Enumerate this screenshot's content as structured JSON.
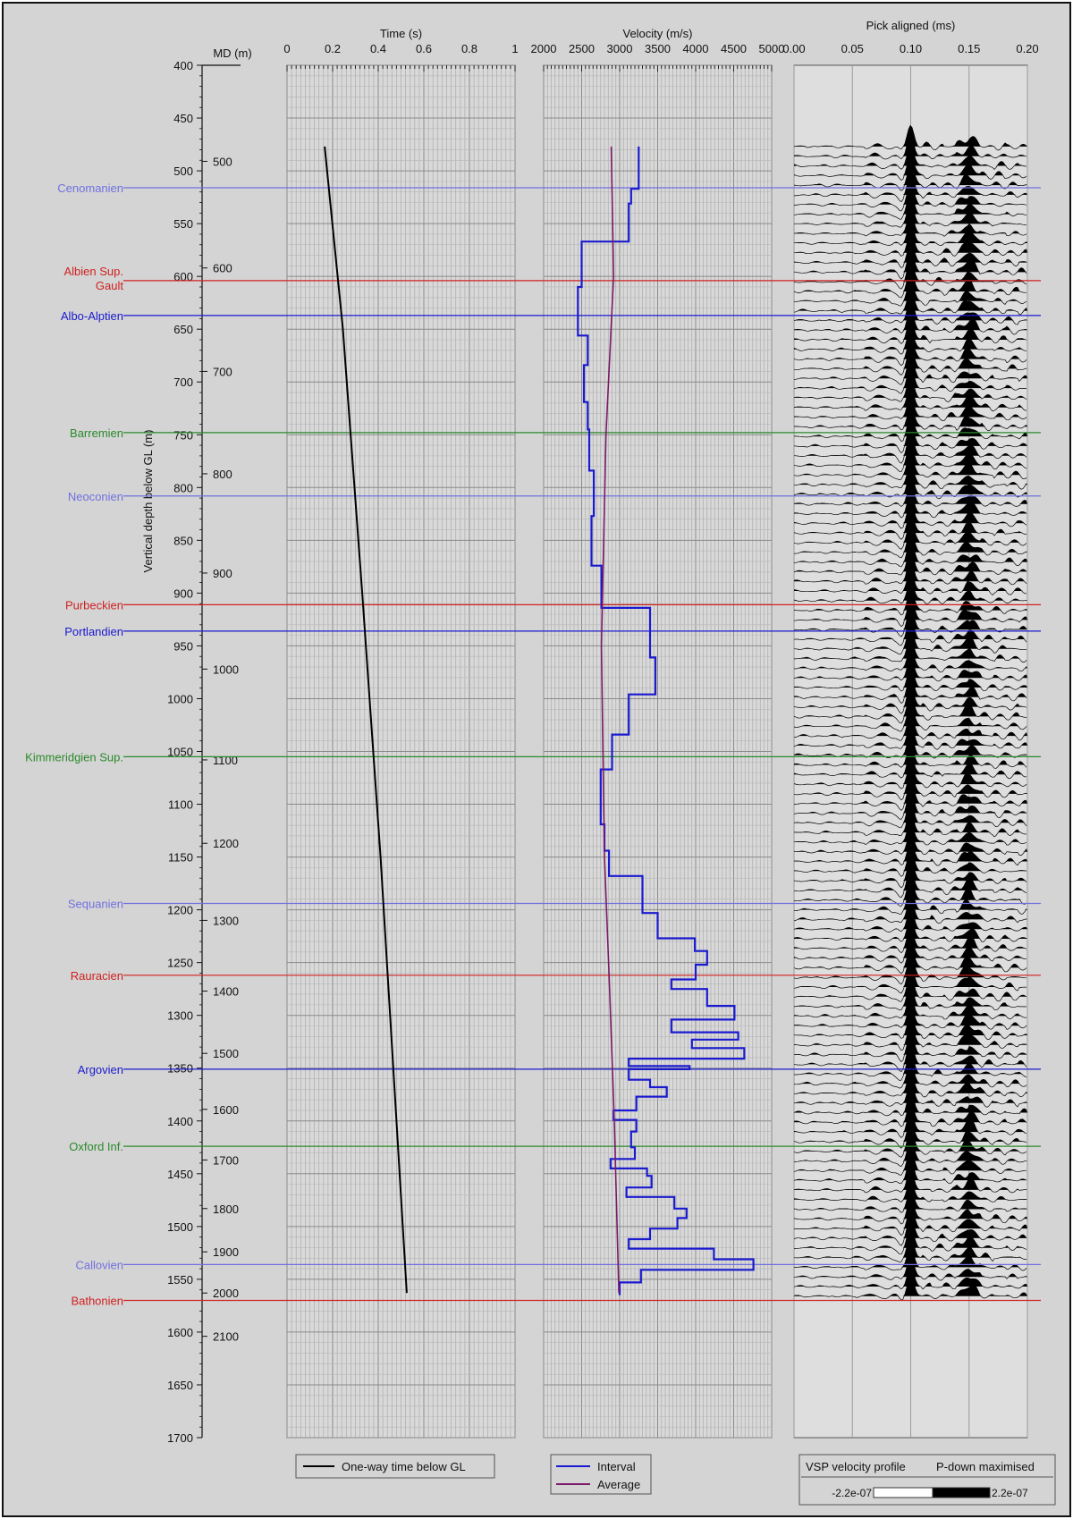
{
  "chart_data": {
    "type": "line",
    "depth_axis": {
      "label": "Vertical depth below GL (m)",
      "range": [
        400,
        1700
      ],
      "ticks": [
        400,
        450,
        500,
        550,
        600,
        650,
        700,
        750,
        800,
        850,
        900,
        950,
        1000,
        1050,
        1100,
        1150,
        1200,
        1250,
        1300,
        1350,
        1400,
        1450,
        1500,
        1550,
        1600,
        1650,
        1700
      ]
    },
    "md_axis": {
      "label": "MD (m)",
      "ticks": [
        {
          "md": 500,
          "depth": 491
        },
        {
          "md": 600,
          "depth": 592
        },
        {
          "md": 700,
          "depth": 690
        },
        {
          "md": 800,
          "depth": 787
        },
        {
          "md": 900,
          "depth": 881
        },
        {
          "md": 1000,
          "depth": 972
        },
        {
          "md": 1100,
          "depth": 1058
        },
        {
          "md": 1200,
          "depth": 1137
        },
        {
          "md": 1300,
          "depth": 1210
        },
        {
          "md": 1400,
          "depth": 1277
        },
        {
          "md": 1500,
          "depth": 1336
        },
        {
          "md": 1600,
          "depth": 1389
        },
        {
          "md": 1700,
          "depth": 1437
        },
        {
          "md": 1800,
          "depth": 1483
        },
        {
          "md": 1900,
          "depth": 1524
        },
        {
          "md": 2000,
          "depth": 1563
        },
        {
          "md": 2100,
          "depth": 1604
        }
      ]
    },
    "horizons": [
      {
        "name": "Cenomanien",
        "depth": 516,
        "color": "#7070e0"
      },
      {
        "name": "Albien Sup.",
        "name2": "Gault",
        "depth": 604,
        "color": "#d02020"
      },
      {
        "name": "Albo-Alptien",
        "depth": 637,
        "color": "#1a1ad0"
      },
      {
        "name": "Barremien",
        "depth": 748,
        "color": "#2a8a2a"
      },
      {
        "name": "Neoconien",
        "depth": 808,
        "color": "#7070e0"
      },
      {
        "name": "Purbeckien",
        "depth": 911,
        "color": "#d02020"
      },
      {
        "name": "Portlandien",
        "depth": 936,
        "color": "#1a1ad0"
      },
      {
        "name": "Kimmeridgien Sup.",
        "depth": 1055,
        "color": "#2a8a2a"
      },
      {
        "name": "Sequanien",
        "depth": 1194,
        "color": "#7070e0"
      },
      {
        "name": "Rauracien",
        "depth": 1262,
        "color": "#d02020"
      },
      {
        "name": "Argovien",
        "depth": 1351,
        "color": "#1a1ad0"
      },
      {
        "name": "Oxford Inf.",
        "depth": 1424,
        "color": "#2a8a2a"
      },
      {
        "name": "Callovien",
        "depth": 1536,
        "color": "#7070e0"
      },
      {
        "name": "Bathonien",
        "depth": 1570,
        "color": "#d02020"
      }
    ],
    "time_panel": {
      "title": "Time (s)",
      "xlim": [
        0,
        1
      ],
      "ticks": [
        0,
        0.2,
        0.4,
        0.6,
        0.8,
        1
      ],
      "tick_labels": [
        "0",
        "0.2",
        "0.4",
        "0.6",
        "0.8",
        "1"
      ],
      "series": [
        {
          "name": "One-way time below GL",
          "color": "#000000",
          "points": [
            [
              0.165,
              477
            ],
            [
              0.245,
              650
            ],
            [
              0.33,
              900
            ],
            [
              0.41,
              1150
            ],
            [
              0.48,
              1400
            ],
            [
              0.525,
              1563
            ]
          ]
        }
      ]
    },
    "velocity_panel": {
      "title": "Velocity (m/s)",
      "xlim": [
        2000,
        5000
      ],
      "ticks": [
        2000,
        2500,
        3000,
        3500,
        4000,
        4500,
        5000
      ],
      "tick_labels": [
        "2000",
        "2500",
        "3000",
        "3500",
        "4000",
        "4500",
        "5000"
      ],
      "series": [
        {
          "name": "Interval",
          "color": "#1a1ad0",
          "steps": [
            [
              3250,
              477,
              517
            ],
            [
              3150,
              517,
              531
            ],
            [
              3120,
              531,
              567
            ],
            [
              2500,
              567,
              610
            ],
            [
              2450,
              610,
              656
            ],
            [
              2580,
              656,
              684
            ],
            [
              2530,
              684,
              719
            ],
            [
              2580,
              719,
              745
            ],
            [
              2600,
              745,
              784
            ],
            [
              2660,
              784,
              827
            ],
            [
              2630,
              827,
              874
            ],
            [
              2760,
              874,
              914
            ],
            [
              3400,
              914,
              961
            ],
            [
              3470,
              961,
              996
            ],
            [
              3120,
              996,
              1034
            ],
            [
              2900,
              1034,
              1067
            ],
            [
              2750,
              1067,
              1119
            ],
            [
              2800,
              1119,
              1144
            ],
            [
              2860,
              1144,
              1168
            ],
            [
              3300,
              1168,
              1203
            ],
            [
              3500,
              1203,
              1227
            ],
            [
              3990,
              1227,
              1239
            ],
            [
              4150,
              1239,
              1252
            ],
            [
              4000,
              1252,
              1266
            ],
            [
              3680,
              1266,
              1275
            ],
            [
              4150,
              1275,
              1291
            ],
            [
              4510,
              1291,
              1304
            ],
            [
              3680,
              1304,
              1316
            ],
            [
              4560,
              1316,
              1323
            ],
            [
              3950,
              1323,
              1331
            ],
            [
              4640,
              1331,
              1341
            ],
            [
              3120,
              1341,
              1348
            ],
            [
              3920,
              1348,
              1351
            ],
            [
              3120,
              1351,
              1361
            ],
            [
              3400,
              1361,
              1368
            ],
            [
              3620,
              1368,
              1377
            ],
            [
              3220,
              1377,
              1390
            ],
            [
              2920,
              1390,
              1399
            ],
            [
              3220,
              1399,
              1410
            ],
            [
              3150,
              1410,
              1425
            ],
            [
              3200,
              1425,
              1436
            ],
            [
              2880,
              1436,
              1445
            ],
            [
              3360,
              1445,
              1452
            ],
            [
              3420,
              1452,
              1463
            ],
            [
              3090,
              1463,
              1472
            ],
            [
              3720,
              1472,
              1483
            ],
            [
              3880,
              1483,
              1492
            ],
            [
              3760,
              1492,
              1502
            ],
            [
              3400,
              1502,
              1512
            ],
            [
              3120,
              1512,
              1521
            ],
            [
              4240,
              1521,
              1531
            ],
            [
              4760,
              1531,
              1541
            ],
            [
              3280,
              1541,
              1553
            ],
            [
              3000,
              1553,
              1565
            ]
          ]
        },
        {
          "name": "Average",
          "color": "#7a1a6a",
          "points": [
            [
              2890,
              477
            ],
            [
              2920,
              600
            ],
            [
              2820,
              750
            ],
            [
              2760,
              950
            ],
            [
              2800,
              1150
            ],
            [
              2860,
              1260
            ],
            [
              2930,
              1400
            ],
            [
              2990,
              1563
            ]
          ]
        }
      ]
    },
    "vsp_panel": {
      "title": "Pick aligned (ms)",
      "xlim": [
        0,
        0.2
      ],
      "ticks": [
        0,
        0.05,
        0.1,
        0.15,
        0.2
      ],
      "tick_labels": [
        "0.00",
        "0.05",
        "0.10",
        "0.15",
        "0.20"
      ],
      "first_trace_depth": 477,
      "last_trace_depth": 1566,
      "peak_time": 0.1,
      "amplitude_range": [
        -2.2e-07,
        2.2e-07
      ]
    },
    "legend_time": [
      "One-way time below GL"
    ],
    "legend_velocity": [
      "Interval",
      "Average"
    ],
    "legend_vsp": {
      "left": "VSP velocity profile",
      "right": "P-down maximised",
      "min_label": "-2.2e-07",
      "max_label": "2.2e-07"
    }
  }
}
